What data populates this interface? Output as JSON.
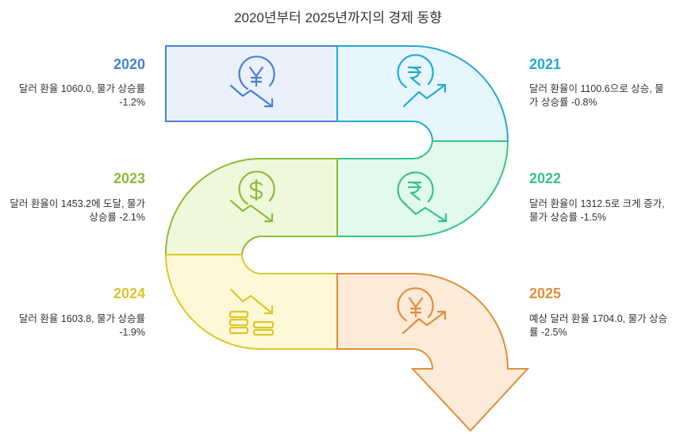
{
  "title": "2020년부터 2025년까지의 경제 동향",
  "steps": [
    {
      "year": "2020",
      "text": "달러 환율 1060.0, 물가 상승률 -1.2%",
      "color": "#4a7fd4",
      "fill": "#eaf1fc",
      "icon": "yen-down-icon"
    },
    {
      "year": "2021",
      "text": "달러 환율이 1100.6으로 상승, 물가 상승률 -0.8%",
      "color": "#22aad4",
      "fill": "#e6f6fc",
      "icon": "rupee-up-icon"
    },
    {
      "year": "2022",
      "text": "달러 환율이 1312.5로 크게 증가, 물가 상승률 -1.5%",
      "color": "#33c48a",
      "fill": "#e3f9ee",
      "icon": "rupee-down-icon"
    },
    {
      "year": "2023",
      "text": "달러 환율이 1453.2에 도달, 물가 상승률 -2.1%",
      "color": "#8cbb36",
      "fill": "#f0f8dc",
      "icon": "dollar-down-icon"
    },
    {
      "year": "2024",
      "text": "달러 환율 1603.8, 물가 상승률 -1.9%",
      "color": "#dcc62a",
      "fill": "#fef8d6",
      "icon": "coins-down-icon"
    },
    {
      "year": "2025",
      "text": "예상 달러 환율 1704.0, 물가 상승률 -2.5%",
      "color": "#e08e38",
      "fill": "#fdebd9",
      "icon": "yen-up-icon"
    }
  ]
}
